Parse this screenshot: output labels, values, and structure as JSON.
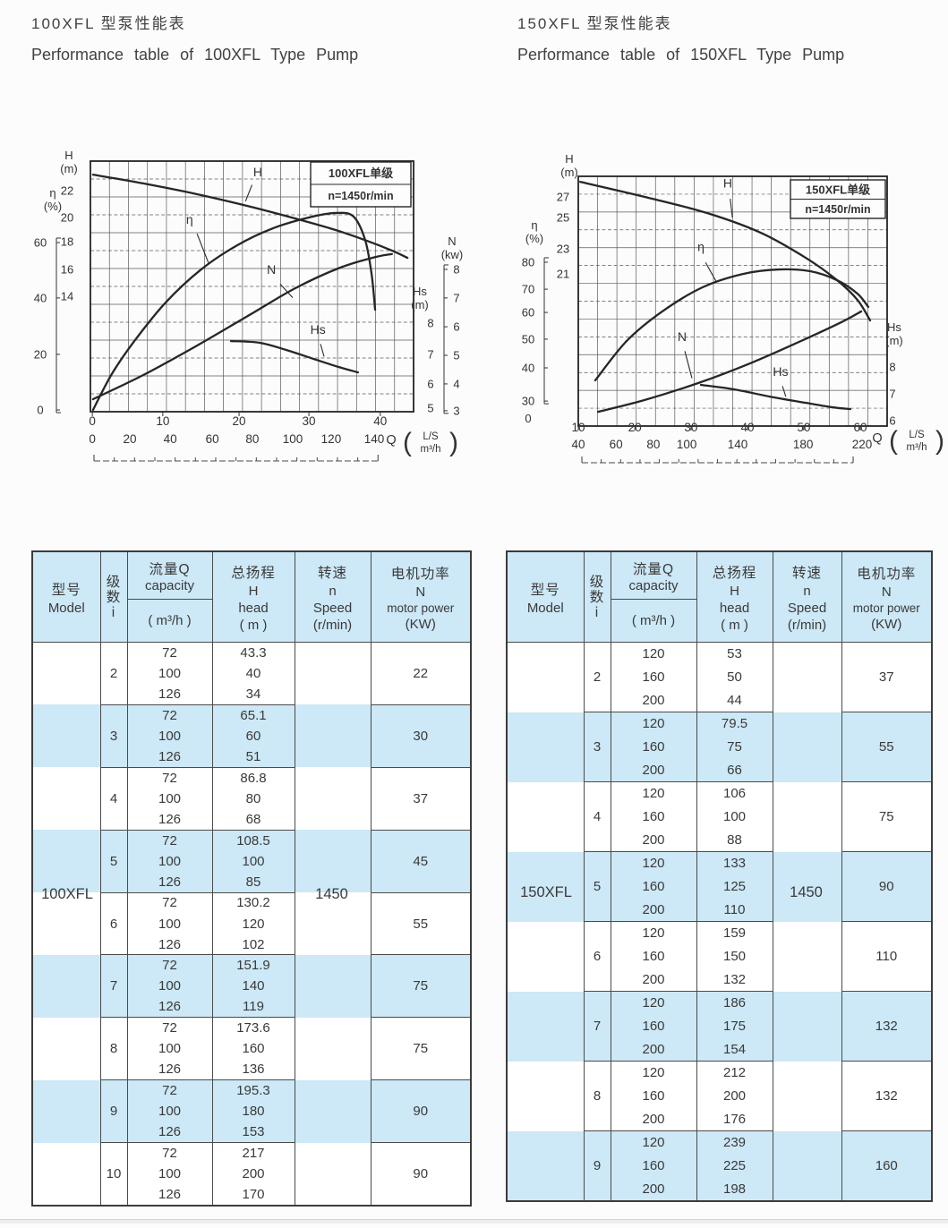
{
  "sections": {
    "left": {
      "title_zh": "100XFL 型泵性能表",
      "title_en": "Performance table of 100XFL Type Pump"
    },
    "right": {
      "title_zh": "150XFL 型泵性能表",
      "title_en": "Performance table of 150XFL Type Pump"
    }
  },
  "table_headers": {
    "model_zh": "型号",
    "model_en": "Model",
    "stage_chars": [
      "级",
      "数",
      "i"
    ],
    "capacity_zh": "流量Q",
    "capacity_en": "capacity",
    "capacity_unit": "( m³/h )",
    "head_zh": "总扬程",
    "head_sym": "H",
    "head_en": "head",
    "head_unit": "( m )",
    "speed_zh": "转速",
    "speed_sym": "n",
    "speed_en": "Speed",
    "speed_unit": "(r/min)",
    "power_zh": "电机功率",
    "power_sym": "N",
    "power_en": "motor power",
    "power_unit": "(KW)"
  },
  "tables": {
    "left": {
      "model": "100XFL",
      "speed": "1450",
      "groups": [
        {
          "i": "2",
          "q": [
            "72",
            "100",
            "126"
          ],
          "h": [
            "43.3",
            "40",
            "34"
          ],
          "n": "22"
        },
        {
          "i": "3",
          "q": [
            "72",
            "100",
            "126"
          ],
          "h": [
            "65.1",
            "60",
            "51"
          ],
          "n": "30"
        },
        {
          "i": "4",
          "q": [
            "72",
            "100",
            "126"
          ],
          "h": [
            "86.8",
            "80",
            "68"
          ],
          "n": "37"
        },
        {
          "i": "5",
          "q": [
            "72",
            "100",
            "126"
          ],
          "h": [
            "108.5",
            "100",
            "85"
          ],
          "n": "45"
        },
        {
          "i": "6",
          "q": [
            "72",
            "100",
            "126"
          ],
          "h": [
            "130.2",
            "120",
            "102"
          ],
          "n": "55"
        },
        {
          "i": "7",
          "q": [
            "72",
            "100",
            "126"
          ],
          "h": [
            "151.9",
            "140",
            "119"
          ],
          "n": "75"
        },
        {
          "i": "8",
          "q": [
            "72",
            "100",
            "126"
          ],
          "h": [
            "173.6",
            "160",
            "136"
          ],
          "n": "75"
        },
        {
          "i": "9",
          "q": [
            "72",
            "100",
            "126"
          ],
          "h": [
            "195.3",
            "180",
            "153"
          ],
          "n": "90"
        },
        {
          "i": "10",
          "q": [
            "72",
            "100",
            "126"
          ],
          "h": [
            "217",
            "200",
            "170"
          ],
          "n": "90"
        }
      ]
    },
    "right": {
      "model": "150XFL",
      "speed": "1450",
      "groups": [
        {
          "i": "2",
          "q": [
            "120",
            "160",
            "200"
          ],
          "h": [
            "53",
            "50",
            "44"
          ],
          "n": "37"
        },
        {
          "i": "3",
          "q": [
            "120",
            "160",
            "200"
          ],
          "h": [
            "79.5",
            "75",
            "66"
          ],
          "n": "55"
        },
        {
          "i": "4",
          "q": [
            "120",
            "160",
            "200"
          ],
          "h": [
            "106",
            "100",
            "88"
          ],
          "n": "75"
        },
        {
          "i": "5",
          "q": [
            "120",
            "160",
            "200"
          ],
          "h": [
            "133",
            "125",
            "110"
          ],
          "n": "90"
        },
        {
          "i": "6",
          "q": [
            "120",
            "160",
            "200"
          ],
          "h": [
            "159",
            "150",
            "132"
          ],
          "n": "110"
        },
        {
          "i": "7",
          "q": [
            "120",
            "160",
            "200"
          ],
          "h": [
            "186",
            "175",
            "154"
          ],
          "n": "132"
        },
        {
          "i": "8",
          "q": [
            "120",
            "160",
            "200"
          ],
          "h": [
            "212",
            "200",
            "176"
          ],
          "n": "132"
        },
        {
          "i": "9",
          "q": [
            "120",
            "160",
            "200"
          ],
          "h": [
            "239",
            "225",
            "198"
          ],
          "n": "160"
        }
      ]
    }
  },
  "chart_data": [
    {
      "name": "100XFL pump performance curves",
      "type": "line",
      "title_box": [
        "100XFL单级",
        "n=1450r/min"
      ],
      "grid": {
        "cols": 17,
        "rows": 14
      },
      "axes": {
        "inner_left": {
          "label": [
            "H",
            "(m)"
          ],
          "ticks": [
            [
              "22",
              0.118
            ],
            [
              "20",
              0.225
            ],
            [
              "18",
              0.321
            ],
            [
              "16",
              0.432
            ],
            [
              "14",
              0.539
            ]
          ]
        },
        "outer_left": {
          "label": [
            "η",
            "(%)"
          ],
          "ticks": [
            [
              "60",
              0.325
            ],
            [
              "40",
              0.546
            ],
            [
              "20",
              0.771
            ],
            [
              "0",
              0.993
            ]
          ]
        },
        "inner_right": {
          "label": [
            "Hs",
            "(m)"
          ],
          "ticks": [
            [
              "8",
              0.646
            ],
            [
              "7",
              0.771
            ],
            [
              "6",
              0.889
            ],
            [
              "5",
              0.986
            ]
          ]
        },
        "outer_right": {
          "label": [
            "N",
            "(kw)"
          ],
          "ticks": [
            [
              "8",
              0.432
            ],
            [
              "7",
              0.546
            ],
            [
              "6",
              0.661
            ],
            [
              "5",
              0.775
            ],
            [
              "4",
              0.889
            ],
            [
              "3",
              0.996
            ]
          ]
        }
      },
      "x_axis": {
        "q_label": "Q",
        "q_units": [
          "L/S",
          "m³/h"
        ],
        "rows": [
          {
            "unit": "L/S",
            "ticks": [
              [
                "0",
                0.006
              ],
              [
                "10",
                0.224
              ],
              [
                "20",
                0.46
              ],
              [
                "30",
                0.676
              ],
              [
                "40",
                0.897
              ]
            ]
          },
          {
            "unit": "m³/h",
            "ticks": [
              [
                "0",
                0.006
              ],
              [
                "20",
                0.122
              ],
              [
                "40",
                0.247
              ],
              [
                "60",
                0.377
              ],
              [
                "80",
                0.501
              ],
              [
                "100",
                0.626
              ],
              [
                "120",
                0.745
              ],
              [
                "140",
                0.878
              ]
            ]
          }
        ]
      },
      "series": [
        {
          "name": "H",
          "label": "H",
          "label_at": [
            0.518,
            0.06
          ],
          "leader": [
            [
              0.5,
              0.095
            ],
            [
              0.48,
              0.16
            ]
          ],
          "points": [
            [
              0.008,
              0.054
            ],
            [
              0.163,
              0.089
            ],
            [
              0.33,
              0.132
            ],
            [
              0.496,
              0.182
            ],
            [
              0.634,
              0.229
            ],
            [
              0.759,
              0.275
            ],
            [
              0.856,
              0.318
            ],
            [
              0.933,
              0.357
            ],
            [
              0.981,
              0.386
            ]
          ]
        },
        {
          "name": "eta",
          "label": "η",
          "label_at": [
            0.307,
            0.25
          ],
          "leader": [
            [
              0.33,
              0.29
            ],
            [
              0.365,
              0.405
            ]
          ],
          "points": [
            [
              0.008,
              0.993
            ],
            [
              0.066,
              0.85
            ],
            [
              0.136,
              0.718
            ],
            [
              0.233,
              0.564
            ],
            [
              0.343,
              0.432
            ],
            [
              0.454,
              0.336
            ],
            [
              0.565,
              0.268
            ],
            [
              0.676,
              0.225
            ],
            [
              0.759,
              0.207
            ],
            [
              0.814,
              0.221
            ],
            [
              0.85,
              0.314
            ],
            [
              0.87,
              0.45
            ],
            [
              0.881,
              0.593
            ]
          ]
        },
        {
          "name": "N",
          "label": "N",
          "label_at": [
            0.56,
            0.45
          ],
          "leader": [
            [
              0.587,
              0.49
            ],
            [
              0.626,
              0.545
            ]
          ],
          "points": [
            [
              0.008,
              0.95
            ],
            [
              0.163,
              0.854
            ],
            [
              0.33,
              0.736
            ],
            [
              0.496,
              0.611
            ],
            [
              0.634,
              0.507
            ],
            [
              0.773,
              0.425
            ],
            [
              0.884,
              0.382
            ],
            [
              0.933,
              0.371
            ]
          ]
        },
        {
          "name": "Hs",
          "label": "Hs",
          "label_at": [
            0.704,
            0.69
          ],
          "leader": [
            [
              0.712,
              0.73
            ],
            [
              0.723,
              0.78
            ]
          ],
          "points": [
            [
              0.435,
              0.718
            ],
            [
              0.524,
              0.725
            ],
            [
              0.607,
              0.754
            ],
            [
              0.69,
              0.789
            ],
            [
              0.767,
              0.821
            ],
            [
              0.828,
              0.843
            ]
          ]
        }
      ]
    },
    {
      "name": "150XFL pump performance curves",
      "type": "line",
      "title_box": [
        "150XFL单级",
        "n=1450r/min"
      ],
      "grid": {
        "cols": 16,
        "rows": 14
      },
      "axes": {
        "inner_left": {
          "label": [
            "H",
            "(m)"
          ],
          "ticks": [
            [
              "27",
              0.082
            ],
            [
              "25",
              0.165
            ],
            [
              "23",
              0.29
            ],
            [
              "21",
              0.391
            ]
          ]
        },
        "outer_left": {
          "label": [
            "η",
            "(%)"
          ],
          "ticks": [
            [
              "80",
              0.344
            ],
            [
              "70",
              0.452
            ],
            [
              "60",
              0.545
            ],
            [
              "50",
              0.652
            ],
            [
              "40",
              0.767
            ],
            [
              "30",
              0.9
            ],
            [
              "0",
              0.97,
              "nob"
            ]
          ]
        },
        "inner_right": {
          "label": [
            "Hs",
            "(m)"
          ],
          "ticks": [
            [
              "8",
              0.763
            ],
            [
              "7",
              0.871
            ],
            [
              "6",
              0.978
            ]
          ]
        }
      },
      "x_axis": {
        "q_label": "Q",
        "q_units": [
          "L/S",
          "m³/h"
        ],
        "rows": [
          {
            "unit": "L/S",
            "ticks": [
              [
                "10",
                0.0
              ],
              [
                "20",
                0.183
              ],
              [
                "30",
                0.365
              ],
              [
                "40",
                0.548
              ],
              [
                "50",
                0.73
              ],
              [
                "60",
                0.913
              ]
            ]
          },
          {
            "unit": "m³/h",
            "ticks": [
              [
                "40",
                0.0
              ],
              [
                "60",
                0.122
              ],
              [
                "80",
                0.243
              ],
              [
                "100",
                0.351
              ],
              [
                "140",
                0.516
              ],
              [
                "180",
                0.728
              ],
              [
                "220",
                0.919
              ]
            ]
          }
        ]
      },
      "series": [
        {
          "name": "H",
          "label": "H",
          "label_at": [
            0.484,
            0.045
          ],
          "leader": [
            [
              0.492,
              0.09
            ],
            [
              0.499,
              0.165
            ]
          ],
          "points": [
            [
              0.006,
              0.022
            ],
            [
              0.214,
              0.082
            ],
            [
              0.417,
              0.147
            ],
            [
              0.591,
              0.226
            ],
            [
              0.736,
              0.326
            ],
            [
              0.838,
              0.416
            ],
            [
              0.904,
              0.495
            ],
            [
              0.945,
              0.577
            ]
          ]
        },
        {
          "name": "eta",
          "label": "η",
          "label_at": [
            0.397,
            0.3
          ],
          "leader": [
            [
              0.412,
              0.345
            ],
            [
              0.446,
              0.42
            ]
          ],
          "points": [
            [
              0.055,
              0.817
            ],
            [
              0.157,
              0.659
            ],
            [
              0.272,
              0.541
            ],
            [
              0.403,
              0.444
            ],
            [
              0.533,
              0.391
            ],
            [
              0.649,
              0.373
            ],
            [
              0.751,
              0.38
            ],
            [
              0.838,
              0.416
            ],
            [
              0.904,
              0.47
            ],
            [
              0.939,
              0.523
            ]
          ]
        },
        {
          "name": "N",
          "label": "N",
          "label_at": [
            0.336,
            0.66
          ],
          "leader": [
            [
              0.345,
              0.7
            ],
            [
              0.368,
              0.808
            ]
          ],
          "points": [
            [
              0.064,
              0.943
            ],
            [
              0.214,
              0.896
            ],
            [
              0.388,
              0.828
            ],
            [
              0.562,
              0.746
            ],
            [
              0.722,
              0.659
            ],
            [
              0.852,
              0.584
            ],
            [
              0.916,
              0.541
            ]
          ]
        },
        {
          "name": "Hs",
          "label": "Hs",
          "label_at": [
            0.655,
            0.8
          ],
          "leader": [
            [
              0.661,
              0.84
            ],
            [
              0.672,
              0.882
            ]
          ],
          "points": [
            [
              0.397,
              0.835
            ],
            [
              0.504,
              0.853
            ],
            [
              0.62,
              0.882
            ],
            [
              0.736,
              0.907
            ],
            [
              0.823,
              0.925
            ],
            [
              0.881,
              0.932
            ]
          ]
        }
      ]
    }
  ],
  "colors": {
    "stripe": "#cde8f6",
    "line": "#4b4b4b",
    "ink": "#3a3a3a",
    "curve": "#262626"
  }
}
